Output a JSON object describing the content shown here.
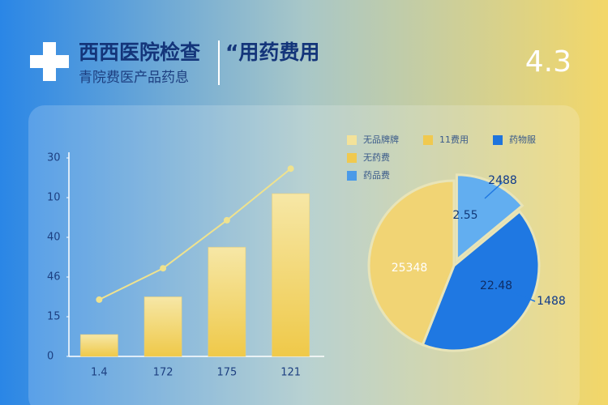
{
  "header": {
    "title": "西西医院检查",
    "title_right": "“用药费用",
    "subtitle": "青院费医产品药息",
    "badge": "4.3"
  },
  "chart_data": [
    {
      "type": "bar",
      "categories": [
        "1.4",
        "172",
        "175",
        "121"
      ],
      "series": [
        {
          "type": "bar",
          "color": "#f1d06a",
          "values": [
            5.5,
            15,
            27.5,
            41
          ]
        },
        {
          "type": "line",
          "color": "#efe28e",
          "values": [
            14.3,
            22.2,
            34.3,
            47.3
          ]
        }
      ],
      "ylim": [
        0,
        50
      ],
      "yticks": [
        0,
        {
          "value": 10,
          "label": "15"
        },
        {
          "value": 20,
          "label": "46"
        },
        {
          "value": 30,
          "label": "40"
        },
        {
          "value": 40,
          "label": "10"
        },
        {
          "value": 50,
          "label": "30"
        }
      ]
    },
    {
      "type": "pie",
      "values": [
        14,
        42,
        44
      ],
      "colors": [
        "#62aef0",
        "#1f78e2",
        "#f1d474"
      ],
      "legend": [
        {
          "name": "无品牌牌",
          "color": "#f3e29a"
        },
        {
          "name": "11费用",
          "color": "#f0c94f"
        },
        {
          "name": "药物服",
          "color": "#1f74dc"
        },
        {
          "name": "无药费",
          "color": "#f0c94f"
        },
        {
          "name": "药品费",
          "color": "#4b9ae8"
        }
      ],
      "annotations": [
        "2488",
        "2.55",
        "25348",
        "22.48",
        "1488"
      ]
    }
  ]
}
